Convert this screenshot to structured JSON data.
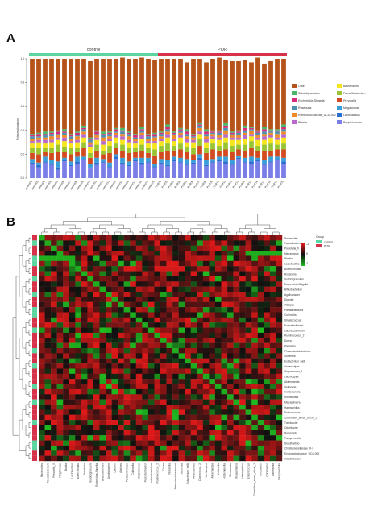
{
  "chart_data": [
    {
      "panel": "A",
      "type": "bar",
      "stacked": true,
      "ylabel": "Relative abundance",
      "ylim": [
        0,
        1
      ],
      "yticks": [
        "0.0",
        "0.2",
        "0.4",
        "0.6",
        "0.8",
        "1.0"
      ],
      "groups": [
        {
          "name": "control",
          "color": "#5cd6a0",
          "n": 20
        },
        {
          "name": "POR",
          "color": "#d6324a",
          "n": 20
        }
      ],
      "samples": [
        "control01",
        "control02",
        "control03",
        "control04",
        "control05",
        "control06",
        "control07",
        "control08",
        "control09",
        "control10",
        "control11",
        "control12",
        "control13",
        "control14",
        "control15",
        "control16",
        "control17",
        "control18",
        "control19",
        "control20",
        "POR01",
        "POR02",
        "POR03",
        "POR04",
        "POR05",
        "POR06",
        "POR07",
        "POR08",
        "POR09",
        "POR10",
        "POR11",
        "POR12",
        "POR13",
        "POR14",
        "POR15",
        "POR16",
        "POR17",
        "POR18",
        "POR19",
        "POR20"
      ],
      "series": [
        {
          "name": "Butyricimonas",
          "color": "#7a7fe8",
          "values": [
            0.12,
            0.09,
            0.13,
            0.11,
            0.07,
            0.14,
            0.1,
            0.12,
            0.15,
            0.08,
            0.11,
            0.13,
            0.09,
            0.16,
            0.12,
            0.1,
            0.14,
            0.11,
            0.13,
            0.09,
            0.12,
            0.1,
            0.14,
            0.13,
            0.11,
            0.12,
            0.15,
            0.1,
            0.13,
            0.14,
            0.12,
            0.11,
            0.16,
            0.13,
            0.12,
            0.14,
            0.11,
            0.13,
            0.15,
            0.12
          ]
        },
        {
          "name": "Lactobacillus",
          "color": "#2a6fcf",
          "values": [
            0.01,
            0.02,
            0.01,
            0.01,
            0.02,
            0.01,
            0.01,
            0.02,
            0.01,
            0.01,
            0.02,
            0.01,
            0.01,
            0.02,
            0.01,
            0.01,
            0.01,
            0.02,
            0.01,
            0.01,
            0.01,
            0.01,
            0.02,
            0.01,
            0.01,
            0.01,
            0.02,
            0.01,
            0.01,
            0.01,
            0.02,
            0.01,
            0.01,
            0.01,
            0.02,
            0.01,
            0.01,
            0.01,
            0.01,
            0.02
          ]
        },
        {
          "name": "Megamonas",
          "color": "#3a9ed8",
          "values": [
            0.03,
            0.02,
            0.04,
            0.03,
            0.05,
            0.02,
            0.03,
            0.04,
            0.02,
            0.03,
            0.04,
            0.02,
            0.03,
            0.02,
            0.04,
            0.03,
            0.02,
            0.04,
            0.03,
            0.02,
            0.03,
            0.04,
            0.02,
            0.03,
            0.04,
            0.02,
            0.03,
            0.04,
            0.02,
            0.03,
            0.04,
            0.03,
            0.02,
            0.03,
            0.04,
            0.02,
            0.03,
            0.04,
            0.02,
            0.03
          ]
        },
        {
          "name": "Prevotella",
          "color": "#d24a1f",
          "values": [
            0.05,
            0.07,
            0.04,
            0.06,
            0.08,
            0.05,
            0.06,
            0.04,
            0.07,
            0.05,
            0.06,
            0.04,
            0.08,
            0.05,
            0.06,
            0.07,
            0.05,
            0.06,
            0.04,
            0.07,
            0.06,
            0.08,
            0.05,
            0.07,
            0.06,
            0.05,
            0.07,
            0.06,
            0.08,
            0.05,
            0.06,
            0.07,
            0.05,
            0.06,
            0.07,
            0.06,
            0.08,
            0.05,
            0.06,
            0.07
          ]
        },
        {
          "name": "Faecalibacterium",
          "color": "#99c534",
          "values": [
            0.04,
            0.05,
            0.03,
            0.04,
            0.06,
            0.04,
            0.05,
            0.03,
            0.05,
            0.04,
            0.05,
            0.03,
            0.06,
            0.04,
            0.05,
            0.04,
            0.03,
            0.05,
            0.04,
            0.05,
            0.05,
            0.06,
            0.04,
            0.05,
            0.04,
            0.05,
            0.06,
            0.04,
            0.05,
            0.04,
            0.06,
            0.05,
            0.04,
            0.05,
            0.06,
            0.04,
            0.05,
            0.06,
            0.04,
            0.05
          ]
        },
        {
          "name": "Bacteroides",
          "color": "#f5e51e",
          "values": [
            0.04,
            0.05,
            0.04,
            0.05,
            0.04,
            0.05,
            0.04,
            0.05,
            0.04,
            0.05,
            0.04,
            0.05,
            0.04,
            0.05,
            0.04,
            0.05,
            0.04,
            0.05,
            0.04,
            0.05,
            0.04,
            0.05,
            0.04,
            0.05,
            0.04,
            0.05,
            0.04,
            0.05,
            0.04,
            0.05,
            0.04,
            0.05,
            0.04,
            0.05,
            0.04,
            0.05,
            0.04,
            0.05,
            0.04,
            0.05
          ]
        },
        {
          "name": "Blautia",
          "color": "#b86ac8",
          "values": [
            0.02,
            0.02,
            0.03,
            0.02,
            0.02,
            0.03,
            0.02,
            0.02,
            0.03,
            0.02,
            0.02,
            0.03,
            0.02,
            0.02,
            0.03,
            0.02,
            0.02,
            0.03,
            0.02,
            0.02,
            0.02,
            0.03,
            0.02,
            0.02,
            0.03,
            0.02,
            0.02,
            0.03,
            0.02,
            0.02,
            0.03,
            0.02,
            0.02,
            0.03,
            0.02,
            0.02,
            0.03,
            0.02,
            0.02,
            0.03
          ]
        },
        {
          "name": "Ruminococcaceae_UCG-002",
          "color": "#f08a28",
          "values": [
            0.02,
            0.02,
            0.02,
            0.03,
            0.02,
            0.02,
            0.02,
            0.03,
            0.02,
            0.02,
            0.02,
            0.03,
            0.02,
            0.02,
            0.02,
            0.03,
            0.02,
            0.02,
            0.02,
            0.03,
            0.02,
            0.02,
            0.03,
            0.02,
            0.02,
            0.02,
            0.03,
            0.02,
            0.02,
            0.02,
            0.03,
            0.02,
            0.02,
            0.02,
            0.03,
            0.02,
            0.02,
            0.02,
            0.03,
            0.02
          ]
        },
        {
          "name": "Roseburia",
          "color": "#4f8fb0",
          "values": [
            0.02,
            0.01,
            0.02,
            0.02,
            0.01,
            0.02,
            0.02,
            0.01,
            0.02,
            0.02,
            0.01,
            0.02,
            0.02,
            0.01,
            0.02,
            0.02,
            0.01,
            0.02,
            0.02,
            0.01,
            0.02,
            0.02,
            0.01,
            0.02,
            0.02,
            0.01,
            0.02,
            0.02,
            0.01,
            0.02,
            0.02,
            0.01,
            0.02,
            0.02,
            0.01,
            0.02,
            0.02,
            0.01,
            0.02,
            0.02
          ]
        },
        {
          "name": "Escherichia-Shigella",
          "color": "#d62a7a",
          "values": [
            0.01,
            0.02,
            0.01,
            0.01,
            0.02,
            0.01,
            0.01,
            0.02,
            0.01,
            0.01,
            0.02,
            0.01,
            0.01,
            0.02,
            0.01,
            0.01,
            0.02,
            0.01,
            0.01,
            0.02,
            0.01,
            0.02,
            0.01,
            0.01,
            0.02,
            0.01,
            0.01,
            0.02,
            0.01,
            0.01,
            0.02,
            0.01,
            0.01,
            0.02,
            0.01,
            0.01,
            0.02,
            0.01,
            0.01,
            0.02
          ]
        },
        {
          "name": "Subdoligranulum",
          "color": "#48b868",
          "values": [
            0.01,
            0.01,
            0.02,
            0.01,
            0.01,
            0.02,
            0.01,
            0.01,
            0.02,
            0.01,
            0.01,
            0.02,
            0.01,
            0.01,
            0.02,
            0.01,
            0.01,
            0.02,
            0.01,
            0.01,
            0.01,
            0.02,
            0.01,
            0.01,
            0.02,
            0.01,
            0.01,
            0.02,
            0.01,
            0.01,
            0.02,
            0.01,
            0.01,
            0.02,
            0.01,
            0.01,
            0.02,
            0.01,
            0.01,
            0.02
          ]
        },
        {
          "name": "Other",
          "color": "#b5531a",
          "values": [
            0.63,
            0.62,
            0.61,
            0.61,
            0.6,
            0.59,
            0.63,
            0.61,
            0.56,
            0.64,
            0.6,
            0.61,
            0.61,
            0.58,
            0.59,
            0.61,
            0.63,
            0.58,
            0.63,
            0.61,
            0.61,
            0.55,
            0.61,
            0.58,
            0.56,
            0.63,
            0.54,
            0.56,
            0.6,
            0.61,
            0.53,
            0.59,
            0.58,
            0.55,
            0.54,
            0.61,
            0.53,
            0.57,
            0.59,
            0.55
          ]
        }
      ]
    },
    {
      "panel": "B",
      "type": "heatmap",
      "legend_title": "Group",
      "group_colors": {
        "control": "#5cd6a0",
        "POR": "#d6324a"
      },
      "color_scale": [
        "#20c020",
        "#101010",
        "#e01818"
      ],
      "scale_ticks": [
        "2",
        "0",
        "-2"
      ],
      "row_labels": [
        "Bacteroides",
        "Faecalibacterium",
        "Prevotella_9",
        "Megamonas",
        "Blautia",
        "Lactobacillus",
        "Butyricimonas",
        "Roseburia",
        "Subdoligranulum",
        "Escherichia-Shigella",
        "Bifidobacterium",
        "Agathobacter",
        "Dialister",
        "Alistipes",
        "Parabacteroides",
        "Collinsella",
        "Streptococcus",
        "Fusicatenibacter",
        "Lachnoclostridium",
        "Ruminococcus_2",
        "Dorea",
        "Klebsiella",
        "Phascolarctobacterium",
        "Sutterella",
        "Eubacterium_hallii",
        "Anaerostipes",
        "Coprococcus_2",
        "Lachnospira",
        "Akkermansia",
        "Veillonella",
        "Holdemanella",
        "Romboutsia",
        "Megasphaera",
        "Haemophilus",
        "Enterococcus",
        "Clostridium_sensu_stricto_1",
        "Turicibacter",
        "Odoribacter",
        "Barnesiella",
        "Paraprevotella",
        "Desulfovibrio",
        "Christensenellaceae_R-7",
        "Erysipelotrichaceae_UCG-003",
        "Intestinibacter"
      ],
      "col_labels": [
        "Bacteroides",
        "Faecalibacterium",
        "Prevotella_9",
        "Megamonas",
        "Blautia",
        "Lactobacillus",
        "Butyricimonas",
        "Roseburia",
        "Subdoligranulum",
        "Escherichia-Shigella",
        "Bifidobacterium",
        "Agathobacter",
        "Dialister",
        "Alistipes",
        "Parabacteroides",
        "Collinsella",
        "Streptococcus",
        "Fusicatenibacter",
        "Lachnoclostridium",
        "Ruminococcus_2",
        "Dorea",
        "Klebsiella",
        "Phascolarctobacterium",
        "Sutterella",
        "Eubacterium_hallii",
        "Anaerostipes",
        "Coprococcus_2",
        "Lachnospira",
        "Akkermansia",
        "Veillonella",
        "Holdemanella",
        "Romboutsia",
        "Megasphaera",
        "Haemophilus",
        "Enterococcus",
        "Clostridium_sensu_stricto_1",
        "Turicibacter",
        "Odoribacter",
        "Barnesiella",
        "Paraprevotella"
      ],
      "row_groups": [
        "POR",
        "control",
        "POR",
        "POR",
        "control",
        "control",
        "POR",
        "POR",
        "control",
        "POR",
        "POR",
        "control",
        "POR",
        "POR",
        "control",
        "control",
        "POR",
        "POR",
        "control",
        "POR",
        "POR",
        "POR",
        "control",
        "POR",
        "POR",
        "control",
        "POR",
        "POR",
        "POR",
        "control",
        "POR",
        "POR",
        "control",
        "POR",
        "POR",
        "POR",
        "control",
        "POR",
        "POR",
        "POR",
        "control",
        "control",
        "POR",
        "POR"
      ],
      "value_range": [
        -2,
        2
      ]
    }
  ]
}
